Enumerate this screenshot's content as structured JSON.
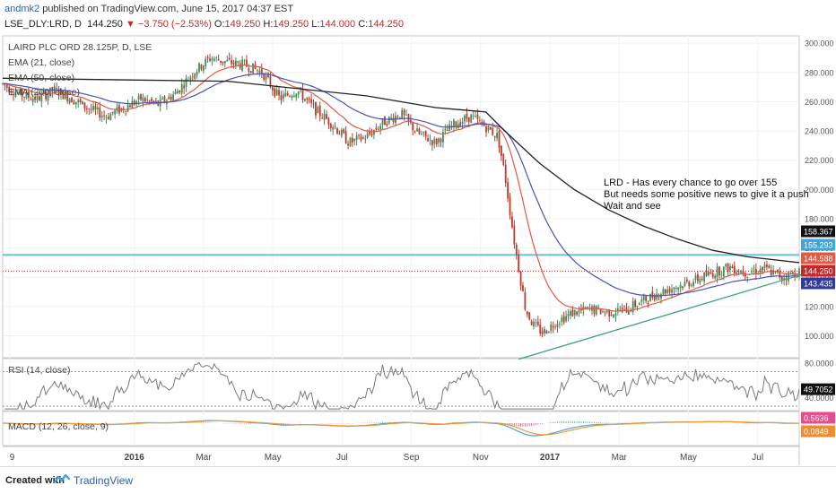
{
  "header": {
    "author": "andmk2",
    "published": " published on TradingView.com, June 15, 2017 04:37 EST",
    "symbol": "LSE_DLY:LRD, D",
    "last": "144.250",
    "change": "▼ −3.750 (−2.53%)",
    "open_label": "O:",
    "open": "149.250",
    "high_label": "H:",
    "high": "149.250",
    "low_label": "L:",
    "low": "144.000",
    "close_label": "C:",
    "close": "144.250"
  },
  "footer": {
    "created_with": "Created with",
    "brand": "TradingView"
  },
  "colors": {
    "up": "#3d8f5c",
    "down": "#c0392b",
    "ema21": "#e05a44",
    "ema50": "#4b52b8",
    "ema200": "#222222",
    "resistance": "#6ec3e3",
    "support_line": "#3aa37a",
    "last_price_line": "#c62828",
    "rsi": "#7a7a7a",
    "macd": "#4aa3df",
    "signal": "#f59a2c",
    "hist_up": "#6fbf8a",
    "hist_dn": "#e36c8f"
  },
  "chart_data": [
    {
      "type": "candlestick",
      "title": "LAIRD PLC ORD 28.125P, D, LSE",
      "indicators": [
        "EMA (21, close)",
        "EMA (50, close)",
        "EMA (200, close)"
      ],
      "x_labels": [
        "9",
        "2016",
        "Mar",
        "May",
        "Jul",
        "Sep",
        "Nov",
        "2017",
        "Mar",
        "May",
        "Jul"
      ],
      "x_label_positions": [
        -1.3,
        2.3,
        4.3,
        6.3,
        8.3,
        10.3,
        12.3,
        14.3,
        16.3,
        18.3,
        20.3
      ],
      "x_range": [
        -1.5,
        21.5
      ],
      "ylim": [
        85,
        305
      ],
      "y_ticks": [
        100,
        120,
        140,
        160,
        180,
        200,
        220,
        240,
        260,
        280,
        300
      ],
      "y_tick_labels": [
        "100.000",
        "120.000",
        "140.000",
        "160.000",
        "180.000",
        "200.000",
        "220.000",
        "240.000",
        "260.000",
        "280.000",
        "300.000"
      ],
      "anchors": [
        [
          -1.5,
          272
        ],
        [
          -1.0,
          265
        ],
        [
          -0.5,
          262
        ],
        [
          0.0,
          268
        ],
        [
          0.5,
          262
        ],
        [
          1.0,
          255
        ],
        [
          1.5,
          250
        ],
        [
          2.0,
          256
        ],
        [
          2.5,
          262
        ],
        [
          3.0,
          258
        ],
        [
          3.5,
          266
        ],
        [
          4.0,
          280
        ],
        [
          4.5,
          290
        ],
        [
          5.0,
          287
        ],
        [
          5.5,
          285
        ],
        [
          6.0,
          280
        ],
        [
          6.5,
          262
        ],
        [
          7.0,
          268
        ],
        [
          7.5,
          255
        ],
        [
          8.0,
          245
        ],
        [
          8.5,
          232
        ],
        [
          9.0,
          236
        ],
        [
          9.5,
          246
        ],
        [
          10.0,
          252
        ],
        [
          10.5,
          238
        ],
        [
          11.0,
          232
        ],
        [
          11.5,
          244
        ],
        [
          12.0,
          250
        ],
        [
          12.5,
          242
        ],
        [
          12.8,
          236
        ],
        [
          13.0,
          210
        ],
        [
          13.3,
          160
        ],
        [
          13.6,
          118
        ],
        [
          13.8,
          108
        ],
        [
          14.1,
          102
        ],
        [
          14.5,
          110
        ],
        [
          15.0,
          116
        ],
        [
          15.5,
          118
        ],
        [
          16.0,
          116
        ],
        [
          16.5,
          118
        ],
        [
          17.0,
          124
        ],
        [
          17.5,
          130
        ],
        [
          18.0,
          134
        ],
        [
          18.5,
          138
        ],
        [
          19.0,
          143
        ],
        [
          19.5,
          147
        ],
        [
          20.0,
          143
        ],
        [
          20.5,
          146
        ],
        [
          21.0,
          140
        ],
        [
          21.5,
          144
        ]
      ],
      "ema200": [
        [
          -1.5,
          276
        ],
        [
          5,
          274
        ],
        [
          9,
          264
        ],
        [
          11,
          256
        ],
        [
          12.45,
          253
        ],
        [
          13,
          240
        ],
        [
          14,
          218
        ],
        [
          15,
          200
        ],
        [
          16,
          186
        ],
        [
          17,
          175
        ],
        [
          18,
          166
        ],
        [
          19,
          158.4
        ],
        [
          20,
          154
        ],
        [
          21.5,
          150
        ]
      ],
      "resistance": 155.293,
      "last_price": 144.25,
      "trendline": [
        [
          13.4,
          84
        ],
        [
          22.3,
          147
        ]
      ],
      "annotation": [
        "LRD - Has every chance to go over 155",
        "But needs some positive news to give it a push",
        "Wait and see"
      ],
      "price_labels": [
        "158.367",
        "155.293",
        "144.588",
        "144.250",
        "143.435"
      ],
      "price_label_values": [
        158.367,
        155.293,
        144.588,
        144.25,
        143.435
      ],
      "price_label_colors": [
        "#111111",
        "#3fa6d6",
        "#e05a44",
        "#c62828",
        "#2f3a9e"
      ]
    },
    {
      "type": "line",
      "title": "RSI (14, close)",
      "ylim": [
        25,
        85
      ],
      "y_tick_labels": [
        "80.0000",
        "40.0000"
      ],
      "y_ticks": [
        80,
        40
      ],
      "guides": [
        70,
        30
      ],
      "last_value": "49.7052"
    },
    {
      "type": "line",
      "title": "MACD (12, 26, close, 9)",
      "macd_last": "0.5636",
      "signal_last": "0.0849"
    }
  ]
}
